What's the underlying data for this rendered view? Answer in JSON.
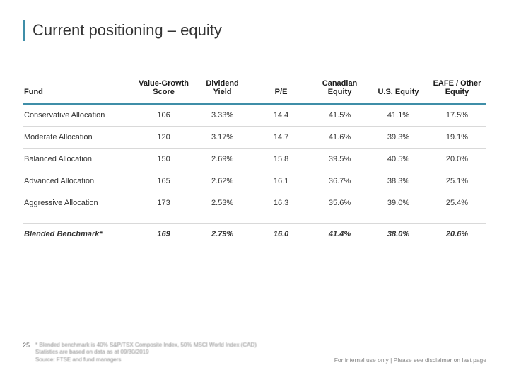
{
  "title": "Current positioning – equity",
  "colors": {
    "accent": "#3f8ea8",
    "row_border": "#d9d9d9",
    "text": "#333333",
    "footer_text": "#888888",
    "background": "#ffffff"
  },
  "table": {
    "type": "table",
    "columns": [
      "Fund",
      "Value-Growth Score",
      "Dividend Yield",
      "P/E",
      "Canadian Equity",
      "U.S. Equity",
      "EAFE / Other Equity"
    ],
    "rows": [
      [
        "Conservative Allocation",
        "106",
        "3.33%",
        "14.4",
        "41.5%",
        "41.1%",
        "17.5%"
      ],
      [
        "Moderate Allocation",
        "120",
        "3.17%",
        "14.7",
        "41.6%",
        "39.3%",
        "19.1%"
      ],
      [
        "Balanced Allocation",
        "150",
        "2.69%",
        "15.8",
        "39.5%",
        "40.5%",
        "20.0%"
      ],
      [
        "Advanced Allocation",
        "165",
        "2.62%",
        "16.1",
        "36.7%",
        "38.3%",
        "25.1%"
      ],
      [
        "Aggressive Allocation",
        "173",
        "2.53%",
        "16.3",
        "35.6%",
        "39.0%",
        "25.4%"
      ]
    ],
    "benchmark": [
      "Blended Benchmark*",
      "169",
      "2.79%",
      "16.0",
      "41.4%",
      "38.0%",
      "20.6%"
    ]
  },
  "footer": {
    "page": "25",
    "line1": "* Blended benchmark is 40% S&P/TSX Composite Index, 50% MSCI World Index (CAD)",
    "line2": "Statistics are based on data as at 09/30/2019",
    "line3": "Source: FTSE and fund managers",
    "right": "For internal use only  |  Please see disclaimer on last page"
  }
}
